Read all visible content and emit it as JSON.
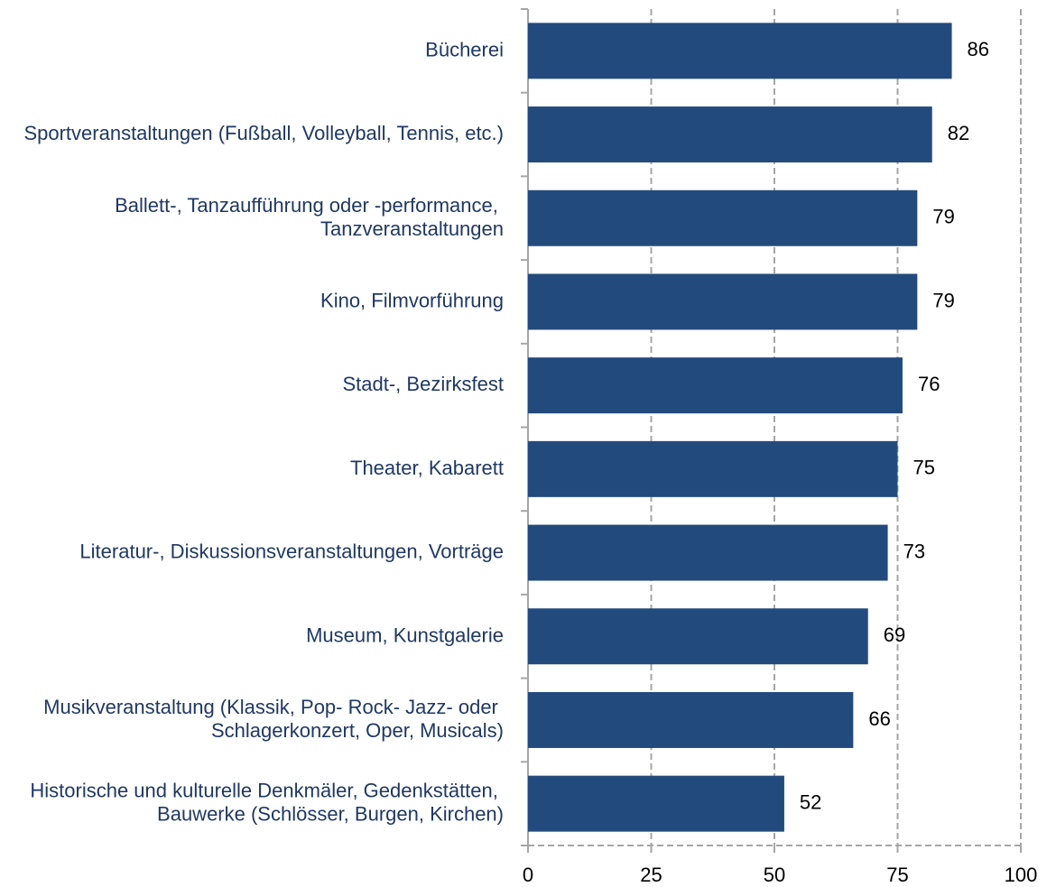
{
  "chart_data": {
    "type": "bar",
    "orientation": "horizontal",
    "categories": [
      "Bücherei",
      "Sportveranstaltungen (Fußball, Volleyball, Tennis, etc.)",
      "Ballett-, Tanzaufführung oder -performance, Tanzveranstaltungen",
      "Kino, Filmvorführung",
      "Stadt-, Bezirksfest",
      "Theater, Kabarett",
      "Literatur-, Diskussionsveranstaltungen, Vorträge",
      "Museum, Kunstgalerie",
      "Musikveranstaltung (Klassik, Pop- Rock- Jazz- oder Schlagerkonzert, Oper, Musicals)",
      "Historische und kulturelle Denkmäler, Gedenkstätten, Bauwerke (Schlösser, Burgen, Kirchen)"
    ],
    "values": [
      86,
      82,
      79,
      79,
      76,
      75,
      73,
      69,
      66,
      52
    ],
    "value_labels": [
      "86",
      "82",
      "79",
      "79",
      "76",
      "75",
      "73",
      "69",
      "66",
      "52"
    ],
    "color": "#234a7c",
    "xlim": [
      0,
      100
    ],
    "xticks": [
      0,
      25,
      50,
      75,
      100
    ],
    "grid": true
  }
}
